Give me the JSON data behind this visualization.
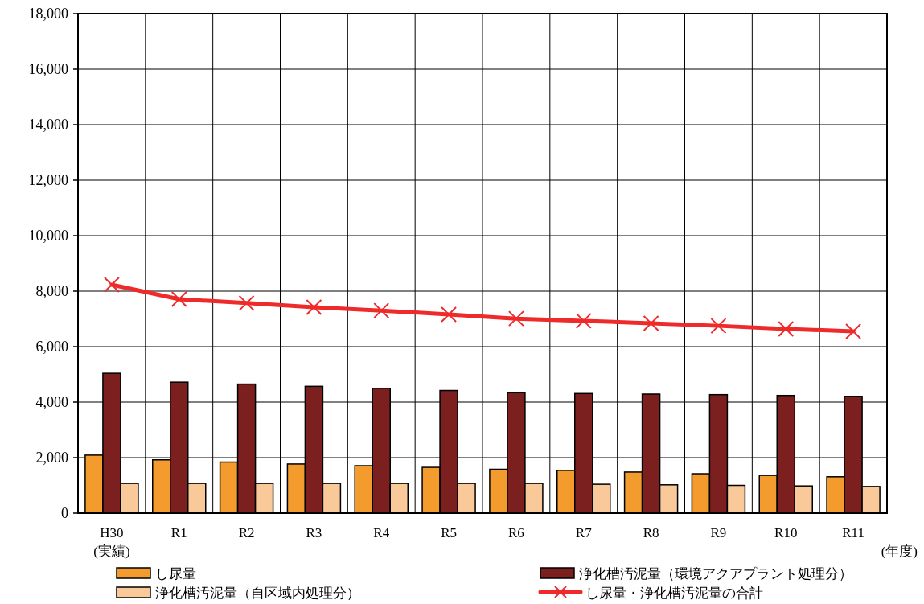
{
  "chart_data": {
    "type": "bar",
    "xlabel": "(年度)",
    "categories": [
      "H30\n(実績)",
      "R1",
      "R2",
      "R3",
      "R4",
      "R5",
      "R6",
      "R7",
      "R8",
      "R9",
      "R10",
      "R11"
    ],
    "series": [
      {
        "name": "し尿量",
        "color": "#f39c2d",
        "values": [
          2090,
          1920,
          1840,
          1770,
          1710,
          1650,
          1580,
          1540,
          1480,
          1420,
          1360,
          1310
        ]
      },
      {
        "name": "浄化槽汚泥量（環境アクアプラント処理分）",
        "color": "#7b1f1f",
        "values": [
          5040,
          4720,
          4650,
          4570,
          4500,
          4420,
          4340,
          4310,
          4290,
          4270,
          4240,
          4210
        ]
      },
      {
        "name": "浄化槽汚泥量（自区域内処理分）",
        "color": "#f9c999",
        "values": [
          1070,
          1070,
          1070,
          1070,
          1070,
          1070,
          1070,
          1040,
          1020,
          1000,
          980,
          960
        ]
      },
      {
        "name": "し尿量・浄化槽汚泥量の合計",
        "type": "line",
        "color": "#ee2a2a",
        "marker": "cross",
        "values": [
          8230,
          7710,
          7570,
          7420,
          7300,
          7160,
          7010,
          6930,
          6840,
          6750,
          6640,
          6550
        ]
      }
    ],
    "ylim": [
      0,
      18000
    ],
    "yticks": [
      0,
      {
        "value": 2000,
        "label": "2,000"
      },
      {
        "value": 4000,
        "label": "4,000"
      },
      {
        "value": 6000,
        "label": "6,000"
      },
      {
        "value": 8000,
        "label": "8,000"
      },
      {
        "value": 10000,
        "label": "10,000"
      },
      {
        "value": 12000,
        "label": "12,000"
      },
      {
        "value": 14000,
        "label": "14,000"
      },
      {
        "value": 16000,
        "label": "16,000"
      },
      {
        "value": 18000,
        "label": "18,000"
      }
    ],
    "grid": true,
    "legend": "bottom"
  }
}
